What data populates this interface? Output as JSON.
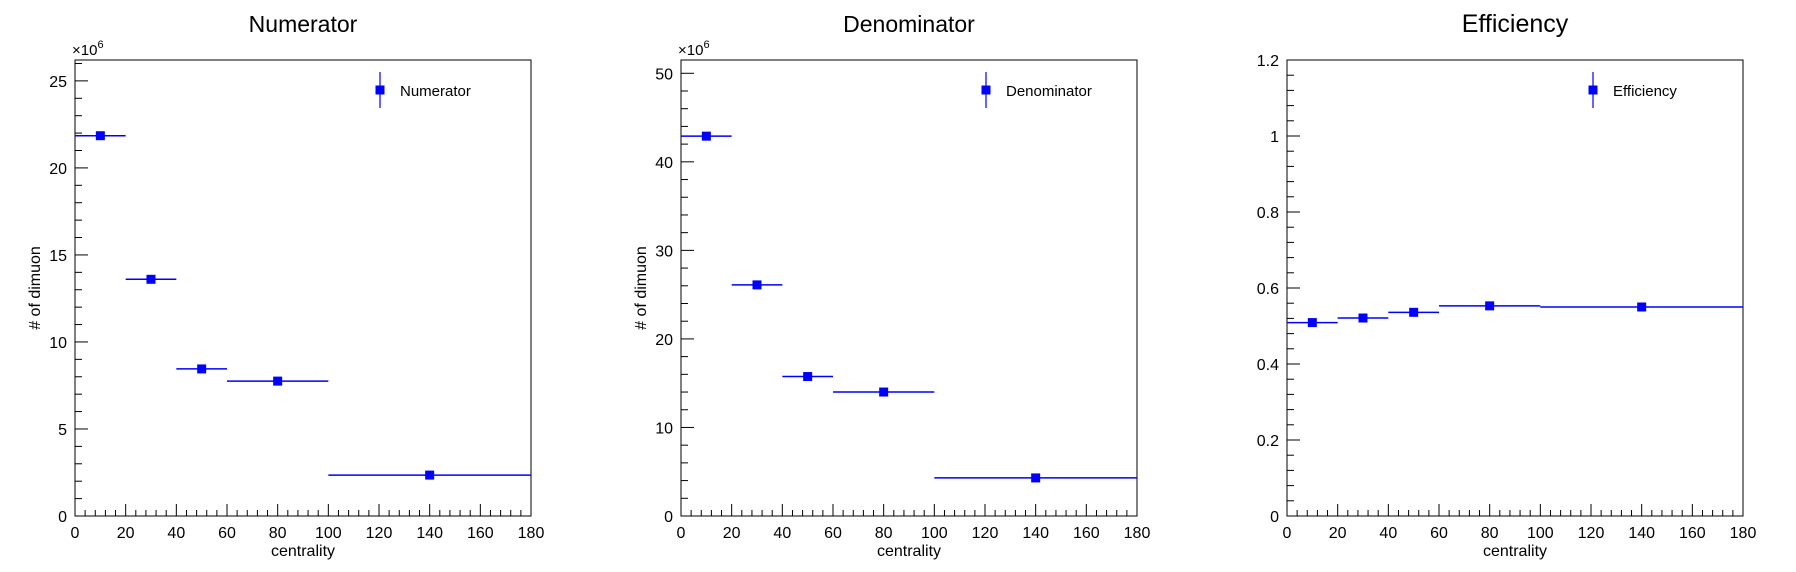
{
  "colors": {
    "marker": "#0000ff",
    "axis": "#000000"
  },
  "chart_data": [
    {
      "type": "scatter",
      "title": "Numerator",
      "xlabel": "centrality",
      "ylabel": "# of dimuon",
      "exponent_label": "×10",
      "exponent_power": "6",
      "xlim": [
        0,
        180
      ],
      "ylim": [
        0,
        26.2
      ],
      "xticks": [
        0,
        20,
        40,
        60,
        80,
        100,
        120,
        140,
        160,
        180
      ],
      "xtick_labels": [
        "0",
        "20",
        "40",
        "60",
        "80",
        "100",
        "120",
        "140",
        "160",
        "180"
      ],
      "yticks": [
        0,
        5,
        10,
        15,
        20,
        25
      ],
      "ytick_labels": [
        "0",
        "5",
        "10",
        "15",
        "20",
        "25"
      ],
      "y_minor_step": 1,
      "grid": false,
      "legend": "top-right",
      "series": [
        {
          "name": "Numerator",
          "points": [
            {
              "x": 10,
              "xlow": 0,
              "xhigh": 20,
              "y": 21.85
            },
            {
              "x": 30,
              "xlow": 20,
              "xhigh": 40,
              "y": 13.6
            },
            {
              "x": 50,
              "xlow": 40,
              "xhigh": 60,
              "y": 8.45
            },
            {
              "x": 80,
              "xlow": 60,
              "xhigh": 100,
              "y": 7.75
            },
            {
              "x": 140,
              "xlow": 100,
              "xhigh": 180,
              "y": 2.35
            }
          ]
        }
      ]
    },
    {
      "type": "scatter",
      "title": "Denominator",
      "xlabel": "centrality",
      "ylabel": "# of dimuon",
      "exponent_label": "×10",
      "exponent_power": "6",
      "xlim": [
        0,
        180
      ],
      "ylim": [
        0,
        51.5
      ],
      "xticks": [
        0,
        20,
        40,
        60,
        80,
        100,
        120,
        140,
        160,
        180
      ],
      "xtick_labels": [
        "0",
        "20",
        "40",
        "60",
        "80",
        "100",
        "120",
        "140",
        "160",
        "180"
      ],
      "yticks": [
        0,
        10,
        20,
        30,
        40,
        50
      ],
      "ytick_labels": [
        "0",
        "10",
        "20",
        "30",
        "40",
        "50"
      ],
      "y_minor_step": 2,
      "grid": false,
      "legend": "top-right",
      "series": [
        {
          "name": "Denominator",
          "points": [
            {
              "x": 10,
              "xlow": 0,
              "xhigh": 20,
              "y": 42.9
            },
            {
              "x": 30,
              "xlow": 20,
              "xhigh": 40,
              "y": 26.1
            },
            {
              "x": 50,
              "xlow": 40,
              "xhigh": 60,
              "y": 15.75
            },
            {
              "x": 80,
              "xlow": 60,
              "xhigh": 100,
              "y": 14.0
            },
            {
              "x": 140,
              "xlow": 100,
              "xhigh": 180,
              "y": 4.3
            }
          ]
        }
      ]
    },
    {
      "type": "scatter",
      "title": "Efficiency",
      "xlabel": "centrality",
      "ylabel": "",
      "exponent_label": "",
      "exponent_power": "",
      "xlim": [
        0,
        180
      ],
      "ylim": [
        0,
        1.2
      ],
      "xticks": [
        0,
        20,
        40,
        60,
        80,
        100,
        120,
        140,
        160,
        180
      ],
      "xtick_labels": [
        "0",
        "20",
        "40",
        "60",
        "80",
        "100",
        "120",
        "140",
        "160",
        "180"
      ],
      "yticks": [
        0,
        0.2,
        0.4,
        0.6,
        0.8,
        1.0,
        1.2
      ],
      "ytick_labels": [
        "0",
        "0.2",
        "0.4",
        "0.6",
        "0.8",
        "1",
        "1.2"
      ],
      "y_minor_step": 0.04,
      "grid": false,
      "legend": "top-right",
      "series": [
        {
          "name": "Efficiency",
          "points": [
            {
              "x": 10,
              "xlow": 0,
              "xhigh": 20,
              "y": 0.509
            },
            {
              "x": 30,
              "xlow": 20,
              "xhigh": 40,
              "y": 0.521
            },
            {
              "x": 50,
              "xlow": 40,
              "xhigh": 60,
              "y": 0.536
            },
            {
              "x": 80,
              "xlow": 60,
              "xhigh": 100,
              "y": 0.553
            },
            {
              "x": 140,
              "xlow": 100,
              "xhigh": 180,
              "y": 0.55
            }
          ]
        }
      ]
    }
  ]
}
